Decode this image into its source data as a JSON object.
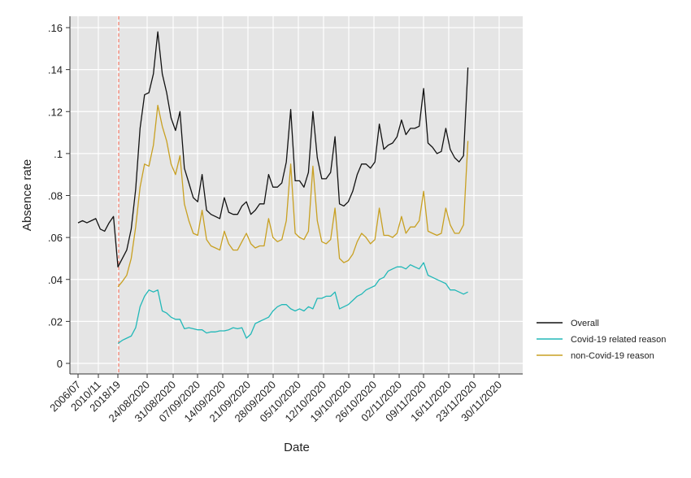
{
  "chart_data": {
    "type": "line",
    "xlabel": "Date",
    "ylabel": "Absence rate",
    "ylim": [
      0,
      0.16
    ],
    "y_ticks": [
      0,
      0.02,
      0.04,
      0.06,
      0.08,
      0.1,
      0.12,
      0.14,
      0.16
    ],
    "y_tick_labels": [
      "0",
      ".02",
      ".04",
      ".06",
      ".08",
      ".1",
      ".12",
      ".14",
      ".16"
    ],
    "x_tick_labels": [
      "2006/07",
      "2010/11",
      "2018/19",
      "24/08/2020",
      "31/08/2020",
      "07/09/2020",
      "14/09/2020",
      "21/09/2020",
      "28/09/2020",
      "05/10/2020",
      "12/10/2020",
      "19/10/2020",
      "26/10/2020",
      "02/11/2020",
      "09/11/2020",
      "16/11/2020",
      "23/11/2020",
      "30/11/2020"
    ],
    "grid": true,
    "legend_position": "right",
    "reference_line": {
      "type": "vertical",
      "style": "dashed",
      "color": "#f08070",
      "position_label": "2018/19"
    },
    "series": [
      {
        "name": "Overall",
        "color": "#111111",
        "values": [
          0.067,
          0.068,
          0.067,
          0.068,
          0.069,
          0.064,
          0.063,
          0.067,
          0.07,
          0.046,
          0.05,
          0.054,
          0.064,
          0.083,
          0.112,
          0.128,
          0.129,
          0.138,
          0.158,
          0.138,
          0.129,
          0.117,
          0.111,
          0.12,
          0.093,
          0.086,
          0.079,
          0.077,
          0.09,
          0.073,
          0.071,
          0.07,
          0.069,
          0.079,
          0.072,
          0.071,
          0.071,
          0.075,
          0.077,
          0.071,
          0.073,
          0.076,
          0.076,
          0.09,
          0.084,
          0.084,
          0.086,
          0.096,
          0.121,
          0.087,
          0.087,
          0.084,
          0.091,
          0.12,
          0.098,
          0.088,
          0.088,
          0.091,
          0.108,
          0.076,
          0.075,
          0.077,
          0.082,
          0.09,
          0.095,
          0.095,
          0.093,
          0.096,
          0.114,
          0.102,
          0.104,
          0.105,
          0.108,
          0.116,
          0.109,
          0.112,
          0.112,
          0.113,
          0.131,
          0.105,
          0.103,
          0.1,
          0.101,
          0.112,
          0.102,
          0.098,
          0.096,
          0.099,
          0.141
        ]
      },
      {
        "name": "Covid-19 related reason",
        "color": "#22b8b8",
        "values": [
          null,
          null,
          null,
          null,
          null,
          null,
          null,
          null,
          null,
          0.0095,
          0.011,
          0.012,
          0.013,
          0.017,
          0.027,
          0.032,
          0.035,
          0.034,
          0.035,
          0.025,
          0.024,
          0.022,
          0.021,
          0.021,
          0.0165,
          0.017,
          0.0165,
          0.016,
          0.016,
          0.0145,
          0.015,
          0.015,
          0.0155,
          0.0155,
          0.016,
          0.017,
          0.0165,
          0.017,
          0.012,
          0.014,
          0.019,
          0.02,
          0.021,
          0.022,
          0.025,
          0.027,
          0.028,
          0.028,
          0.026,
          0.025,
          0.026,
          0.025,
          0.027,
          0.026,
          0.031,
          0.031,
          0.032,
          0.032,
          0.034,
          0.026,
          0.027,
          0.028,
          0.03,
          0.032,
          0.033,
          0.035,
          0.036,
          0.037,
          0.04,
          0.041,
          0.044,
          0.045,
          0.046,
          0.046,
          0.045,
          0.047,
          0.046,
          0.045,
          0.048,
          0.042,
          0.041,
          0.04,
          0.039,
          0.038,
          0.035,
          0.035,
          0.034,
          0.033,
          0.034
        ]
      },
      {
        "name": "non-Covid-19 reason",
        "color": "#c8a022",
        "values": [
          null,
          null,
          null,
          null,
          null,
          null,
          null,
          null,
          null,
          0.0365,
          0.039,
          0.042,
          0.05,
          0.065,
          0.084,
          0.095,
          0.094,
          0.104,
          0.123,
          0.113,
          0.106,
          0.095,
          0.09,
          0.099,
          0.076,
          0.068,
          0.062,
          0.061,
          0.073,
          0.059,
          0.056,
          0.055,
          0.054,
          0.063,
          0.057,
          0.054,
          0.054,
          0.058,
          0.062,
          0.057,
          0.055,
          0.056,
          0.056,
          0.069,
          0.06,
          0.058,
          0.059,
          0.068,
          0.095,
          0.062,
          0.06,
          0.059,
          0.063,
          0.094,
          0.068,
          0.058,
          0.057,
          0.059,
          0.074,
          0.05,
          0.048,
          0.049,
          0.052,
          0.058,
          0.062,
          0.06,
          0.057,
          0.059,
          0.074,
          0.061,
          0.061,
          0.06,
          0.062,
          0.07,
          0.062,
          0.065,
          0.065,
          0.068,
          0.082,
          0.063,
          0.062,
          0.061,
          0.062,
          0.074,
          0.066,
          0.062,
          0.062,
          0.066,
          0.106
        ]
      }
    ]
  }
}
